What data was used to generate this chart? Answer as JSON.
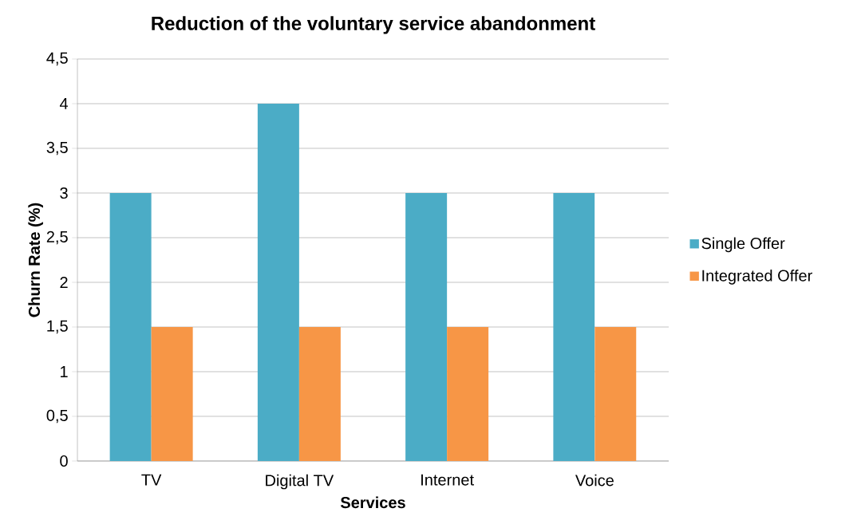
{
  "chart_data": {
    "type": "bar",
    "title": "Reduction of the voluntary service abandonment",
    "xlabel": "Services",
    "ylabel": "Churn Rate (%)",
    "categories": [
      "TV",
      "Digital TV",
      "Internet",
      "Voice"
    ],
    "series": [
      {
        "name": "Single Offer",
        "color": "#4bacc6",
        "values": [
          3,
          4,
          3,
          3
        ]
      },
      {
        "name": "Integrated Offer",
        "color": "#f79646",
        "values": [
          1.5,
          1.5,
          1.5,
          1.5
        ]
      }
    ],
    "ylim": [
      0,
      4.5
    ],
    "yticks": [
      0,
      {
        "value": 0.5,
        "label": "0,5"
      },
      1,
      {
        "value": 1.5,
        "label": "1,5"
      },
      2,
      {
        "value": 2.5,
        "label": "2,5"
      },
      3,
      {
        "value": 3.5,
        "label": "3,5"
      },
      4,
      {
        "value": 4.5,
        "label": "4,5"
      }
    ],
    "grid": "y",
    "legend": "right"
  }
}
